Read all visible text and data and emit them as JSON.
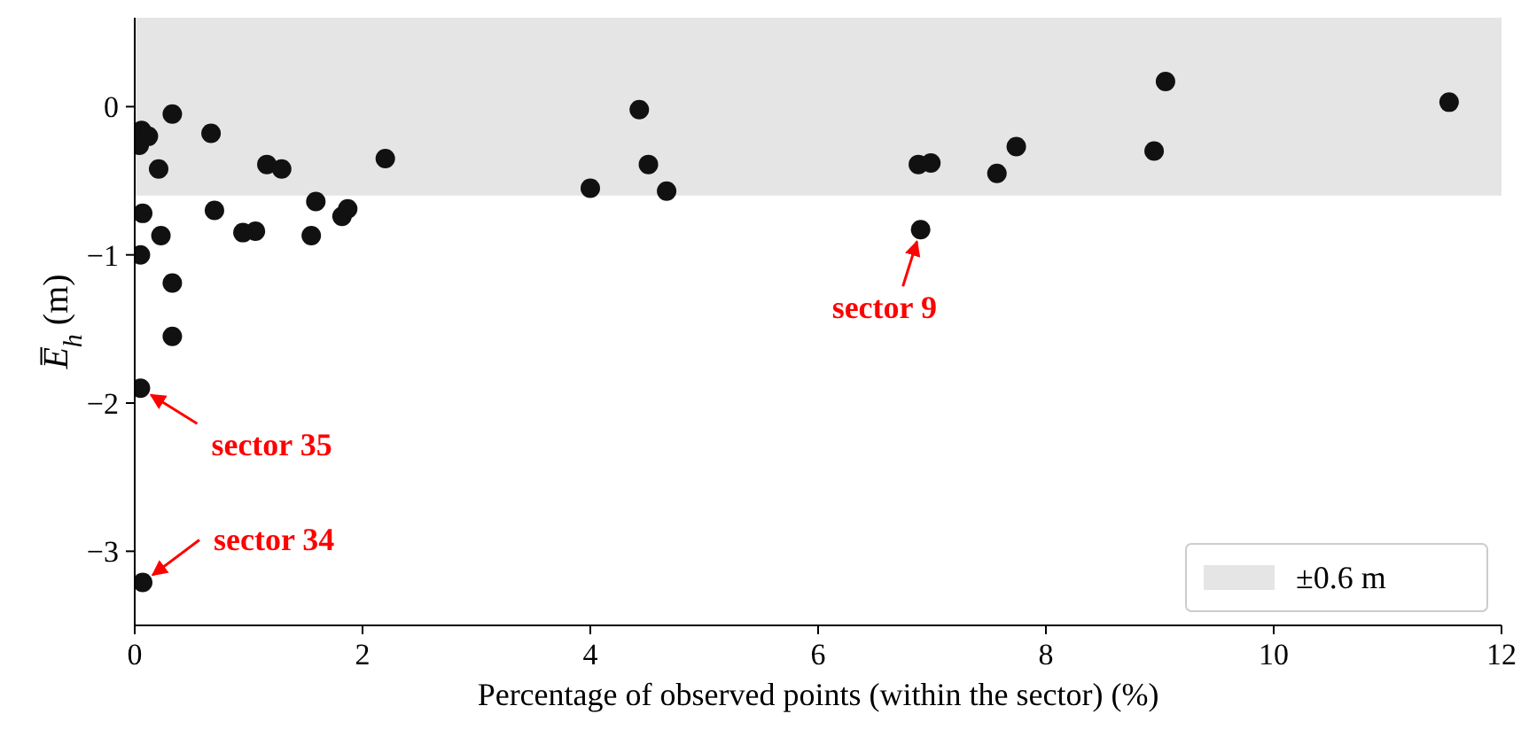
{
  "chart_data": {
    "type": "scatter",
    "xlabel": "Percentage of observed points (within the sector) (%)",
    "ylabel": "E̅$_{h}$ (m)",
    "xlim": [
      0,
      12
    ],
    "xticks": [
      0,
      2,
      4,
      6,
      8,
      10,
      12
    ],
    "ylim": [
      -3.5,
      0.6
    ],
    "yticks": [
      {
        "value": -3,
        "label": "−3"
      },
      {
        "value": -2,
        "label": "−2"
      },
      {
        "value": -1,
        "label": "−1"
      },
      0
    ],
    "grid": false,
    "legend": "bottom right",
    "marker": "circle",
    "bands": [
      {
        "axis": "y",
        "from": -0.6,
        "to": 0.6,
        "label": "±0.6 m",
        "color": "#e5e5e5"
      }
    ],
    "series": [
      {
        "color": "#111111",
        "x": [
          0.06,
          0.12,
          0.04,
          0.33,
          0.21,
          0.67,
          1.16,
          1.29,
          2.2,
          0.07,
          0.7,
          0.23,
          0.95,
          1.06,
          1.59,
          1.55,
          1.82,
          1.87,
          0.05,
          0.33,
          0.33,
          0.05,
          0.07,
          4.43,
          4.51,
          4.0,
          4.67,
          6.88,
          6.99,
          6.9,
          9.05,
          11.54,
          8.95,
          7.74,
          7.57
        ],
        "values": [
          -0.16,
          -0.2,
          -0.26,
          -0.05,
          -0.42,
          -0.18,
          -0.39,
          -0.42,
          -0.35,
          -0.72,
          -0.7,
          -0.87,
          -0.85,
          -0.84,
          -0.64,
          -0.87,
          -0.74,
          -0.69,
          -1.0,
          -1.19,
          -1.55,
          -1.9,
          -3.21,
          -0.02,
          -0.39,
          -0.55,
          -0.57,
          -0.39,
          -0.38,
          -0.83,
          0.17,
          0.03,
          -0.3,
          -0.27,
          -0.45
        ]
      }
    ],
    "annotations": [
      {
        "text": "sector 9",
        "x": 6.9,
        "y": -0.83
      },
      {
        "text": "sector 35",
        "x": 0.05,
        "y": -1.9
      },
      {
        "text": "sector 34",
        "x": 0.07,
        "y": -3.21
      }
    ]
  }
}
